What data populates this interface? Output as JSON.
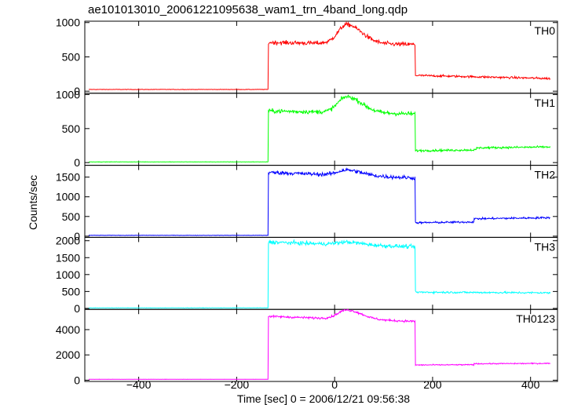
{
  "title": "ae101013010_20061221095638_wam1_trn_4band_long.qdp",
  "chart_data": {
    "type": "line",
    "title": "ae101013010_20061221095638_wam1_trn_4band_long.qdp",
    "xlabel": "Time [sec] 0 = 2006/12/21 09:56:38",
    "ylabel": "Counts/sec",
    "xlim": [
      -510,
      455
    ],
    "xticks": [
      -400,
      -200,
      0,
      200,
      400
    ],
    "grid": false,
    "panels": [
      {
        "name": "TH0",
        "color": "#ff0000",
        "ylim": [
          -30,
          1020
        ],
        "yticks": [
          0,
          500,
          1000
        ],
        "ytick_labels": [
          "0",
          "500",
          "1000"
        ],
        "baseline": 25,
        "t_on": -135,
        "on_start": 710,
        "on_end": 680,
        "flare_peak": 970,
        "flare_time": 25,
        "t_off": 165,
        "tail_start": 230,
        "tail_end": 185,
        "step_time": null,
        "step_value": 0,
        "noise": 22
      },
      {
        "name": "TH1",
        "color": "#00ff00",
        "ylim": [
          -40,
          1020
        ],
        "yticks": [
          0,
          500,
          1000
        ],
        "ytick_labels": [
          "0",
          "500",
          "1000"
        ],
        "baseline": 10,
        "t_on": -135,
        "on_start": 760,
        "on_end": 715,
        "flare_peak": 970,
        "flare_time": 25,
        "t_off": 165,
        "tail_start": 175,
        "tail_end": 200,
        "step_time": 290,
        "step_value": 30,
        "noise": 22
      },
      {
        "name": "TH2",
        "color": "#0000ff",
        "ylim": [
          -30,
          1800
        ],
        "yticks": [
          0,
          500,
          1000,
          1500
        ],
        "ytick_labels": [
          "0",
          "500",
          "1000",
          "1500"
        ],
        "baseline": 20,
        "t_on": -135,
        "on_start": 1620,
        "on_end": 1480,
        "flare_peak": 1680,
        "flare_time": 25,
        "t_off": 165,
        "tail_start": 340,
        "tail_end": 390,
        "step_time": 285,
        "step_value": 80,
        "noise": 35
      },
      {
        "name": "TH3",
        "color": "#00ffff",
        "ylim": [
          -30,
          2100
        ],
        "yticks": [
          0,
          500,
          1000,
          1500,
          2000
        ],
        "ytick_labels": [
          "0",
          "500",
          "1000",
          "1500",
          "2000"
        ],
        "baseline": 15,
        "t_on": -135,
        "on_start": 1960,
        "on_end": 1820,
        "flare_peak": 1960,
        "flare_time": 25,
        "t_off": 165,
        "tail_start": 480,
        "tail_end": 460,
        "step_time": null,
        "step_value": 0,
        "noise": 40
      },
      {
        "name": "TH0123",
        "color": "#ff00ff",
        "ylim": [
          -100,
          5600
        ],
        "yticks": [
          0,
          2000,
          4000
        ],
        "ytick_labels": [
          "0",
          "2000",
          "4000"
        ],
        "baseline": 70,
        "t_on": -135,
        "on_start": 5050,
        "on_end": 4650,
        "flare_peak": 5550,
        "flare_time": 25,
        "t_off": 165,
        "tail_start": 1200,
        "tail_end": 1250,
        "step_time": 285,
        "step_value": 80,
        "noise": 60
      }
    ]
  }
}
